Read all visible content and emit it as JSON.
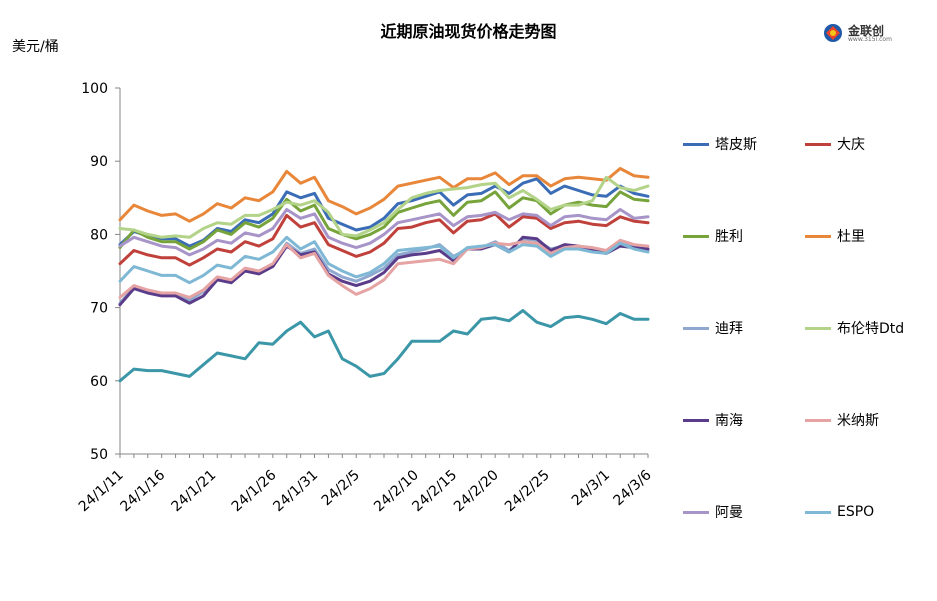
{
  "header": {
    "title": "近期原油现货价格走势图",
    "unit": "美元/桶",
    "logo_text": "金联创",
    "logo_sub": "www.315i.com"
  },
  "chart_data": {
    "type": "line",
    "title": "近期原油现货价格走势图",
    "ylabel": "美元/桶",
    "xlabel": "",
    "ylim": [
      50,
      100
    ],
    "yticks": [
      50,
      60,
      70,
      80,
      90,
      100
    ],
    "grid": false,
    "legend_position": "right",
    "x_tick_labels": [
      "24/1/11",
      "24/1/16",
      "24/1/21",
      "24/1/26",
      "24/1/31",
      "24/2/5",
      "24/2/10",
      "24/2/15",
      "24/2/20",
      "24/2/25",
      "24/3/1",
      "24/3/6"
    ],
    "x": [
      "24/1/11",
      "24/1/12",
      "24/1/15",
      "24/1/16",
      "24/1/17",
      "24/1/18",
      "24/1/19",
      "24/1/22",
      "24/1/23",
      "24/1/24",
      "24/1/25",
      "24/1/26",
      "24/1/29",
      "24/1/30",
      "24/1/31",
      "24/2/1",
      "24/2/2",
      "24/2/5",
      "24/2/6",
      "24/2/7",
      "24/2/8",
      "24/2/9",
      "24/2/13",
      "24/2/14",
      "24/2/15",
      "24/2/16",
      "24/2/19",
      "24/2/20",
      "24/2/21",
      "24/2/22",
      "24/2/23",
      "24/2/26",
      "24/2/27",
      "24/2/28",
      "24/2/29",
      "24/3/1",
      "24/3/4",
      "24/3/5",
      "24/3/6"
    ],
    "series": [
      {
        "name": "塔皮斯",
        "color": "#3a6db5",
        "values": [
          78.6,
          80.4,
          79.8,
          79.4,
          79.4,
          78.4,
          79.2,
          80.8,
          80.4,
          82.0,
          81.6,
          82.8,
          85.8,
          85.0,
          85.6,
          82.2,
          81.4,
          80.6,
          81.0,
          82.2,
          84.2,
          84.6,
          85.2,
          85.8,
          84.0,
          85.4,
          85.6,
          86.6,
          85.6,
          87.0,
          87.6,
          85.6,
          86.6,
          86.0,
          85.4,
          85.2,
          86.6,
          85.6,
          85.2
        ]
      },
      {
        "name": "大庆",
        "color": "#c0413b",
        "values": [
          76.0,
          77.8,
          77.2,
          76.8,
          76.8,
          75.8,
          76.8,
          78.0,
          77.6,
          79.0,
          78.4,
          79.4,
          82.6,
          81.0,
          81.6,
          78.6,
          77.8,
          77.0,
          77.6,
          78.8,
          80.8,
          81.0,
          81.6,
          82.0,
          80.2,
          81.8,
          82.0,
          82.8,
          81.0,
          82.4,
          82.2,
          80.8,
          81.6,
          81.8,
          81.4,
          81.2,
          82.4,
          81.8,
          81.6
        ]
      },
      {
        "name": "胜利",
        "color": "#77a33b",
        "values": [
          78.2,
          80.6,
          79.6,
          79.0,
          79.0,
          78.0,
          79.0,
          80.6,
          80.0,
          81.6,
          81.0,
          82.2,
          84.8,
          83.2,
          84.0,
          80.8,
          80.0,
          79.4,
          80.0,
          81.0,
          83.0,
          83.6,
          84.2,
          84.6,
          82.6,
          84.4,
          84.6,
          85.8,
          83.6,
          85.0,
          84.6,
          82.8,
          84.0,
          84.4,
          84.0,
          83.8,
          85.8,
          84.8,
          84.6
        ]
      },
      {
        "name": "杜里",
        "color": "#e8873a",
        "values": [
          82.0,
          84.0,
          83.2,
          82.6,
          82.8,
          81.8,
          82.8,
          84.2,
          83.6,
          85.0,
          84.6,
          85.8,
          88.6,
          87.0,
          87.8,
          84.6,
          83.8,
          82.8,
          83.6,
          84.8,
          86.6,
          87.0,
          87.4,
          87.8,
          86.4,
          87.6,
          87.6,
          88.4,
          86.8,
          88.0,
          88.0,
          86.6,
          87.6,
          87.8,
          87.6,
          87.4,
          89.0,
          88.0,
          87.8
        ]
      },
      {
        "name": "迪拜",
        "color": "#8fa8d0",
        "values": [
          70.6,
          72.8,
          72.2,
          71.8,
          71.8,
          71.0,
          72.2,
          73.8,
          73.4,
          75.2,
          74.8,
          75.8,
          78.8,
          77.4,
          78.0,
          75.2,
          74.2,
          73.6,
          74.4,
          75.4,
          77.2,
          77.6,
          78.0,
          78.6,
          77.0,
          78.0,
          78.2,
          79.0,
          77.8,
          79.4,
          79.2,
          78.0,
          78.4,
          78.4,
          78.0,
          77.6,
          78.8,
          78.2,
          77.8
        ]
      },
      {
        "name": "布伦特Dtd",
        "color": "#b3d389",
        "values": [
          80.8,
          80.6,
          80.0,
          79.6,
          79.8,
          79.6,
          80.8,
          81.6,
          81.4,
          82.6,
          82.6,
          83.4,
          84.4,
          84.0,
          84.6,
          83.0,
          80.0,
          79.8,
          80.6,
          81.6,
          83.4,
          85.0,
          85.6,
          86.0,
          86.2,
          86.4,
          86.8,
          87.0,
          85.0,
          86.0,
          84.8,
          83.4,
          84.0,
          84.0,
          84.6,
          87.8,
          86.4,
          86.0,
          86.6
        ]
      },
      {
        "name": "南海",
        "color": "#5a3c8a",
        "values": [
          70.4,
          72.6,
          72.0,
          71.6,
          71.6,
          70.6,
          71.6,
          73.8,
          73.4,
          75.0,
          74.6,
          75.6,
          78.4,
          77.2,
          77.6,
          74.6,
          73.6,
          73.0,
          73.6,
          74.8,
          76.8,
          77.2,
          77.4,
          77.8,
          76.4,
          78.0,
          78.0,
          78.6,
          77.6,
          79.6,
          79.4,
          77.8,
          78.6,
          78.4,
          77.8,
          77.4,
          78.4,
          78.2,
          78.0
        ]
      },
      {
        "name": "米纳斯",
        "color": "#e5a3a3",
        "values": [
          71.4,
          73.0,
          72.4,
          72.0,
          72.0,
          71.4,
          72.4,
          74.2,
          73.8,
          75.4,
          75.0,
          76.0,
          78.6,
          76.8,
          77.4,
          74.4,
          73.0,
          71.8,
          72.6,
          73.8,
          76.0,
          76.2,
          76.4,
          76.6,
          76.0,
          78.0,
          78.2,
          78.8,
          78.6,
          79.0,
          78.8,
          77.4,
          78.2,
          78.4,
          78.2,
          77.8,
          79.2,
          78.6,
          78.4
        ]
      },
      {
        "name": "阿曼",
        "color": "#a794c8",
        "values": [
          78.4,
          79.6,
          79.0,
          78.4,
          78.2,
          77.2,
          78.0,
          79.2,
          78.8,
          80.2,
          79.8,
          80.8,
          83.4,
          82.2,
          82.8,
          79.6,
          78.8,
          78.2,
          78.8,
          80.0,
          81.6,
          82.0,
          82.4,
          82.8,
          81.2,
          82.4,
          82.6,
          83.0,
          82.0,
          82.8,
          82.6,
          81.2,
          82.4,
          82.6,
          82.2,
          82.0,
          83.4,
          82.2,
          82.4
        ]
      },
      {
        "name": "ESPO",
        "color": "#7fb8d4",
        "values": [
          73.6,
          75.6,
          75.0,
          74.4,
          74.4,
          73.4,
          74.4,
          75.8,
          75.4,
          77.0,
          76.6,
          77.6,
          79.6,
          78.0,
          79.0,
          76.0,
          75.0,
          74.2,
          74.8,
          76.0,
          77.8,
          78.0,
          78.2,
          78.4,
          76.8,
          78.2,
          78.4,
          78.6,
          77.6,
          78.6,
          78.4,
          77.0,
          78.0,
          78.0,
          77.6,
          77.4,
          78.8,
          78.0,
          77.6
        ]
      },
      {
        "name": "",
        "color": "#3b97a8",
        "values": [
          60.0,
          61.6,
          61.4,
          61.4,
          61.0,
          60.6,
          62.2,
          63.8,
          63.4,
          63.0,
          65.2,
          65.0,
          66.8,
          68.0,
          66.0,
          66.8,
          63.0,
          62.0,
          60.6,
          61.0,
          63.0,
          65.4,
          65.4,
          65.4,
          66.8,
          66.4,
          68.4,
          68.6,
          68.2,
          69.6,
          68.0,
          67.4,
          68.6,
          68.8,
          68.4,
          67.8,
          69.2,
          68.4,
          68.4
        ]
      }
    ]
  },
  "legend": [
    {
      "label": "塔皮斯",
      "color": "#3a6db5"
    },
    {
      "label": "大庆",
      "color": "#c0413b"
    },
    {
      "label": "胜利",
      "color": "#77a33b"
    },
    {
      "label": "杜里",
      "color": "#e8873a"
    },
    {
      "label": "迪拜",
      "color": "#8fa8d0"
    },
    {
      "label": "布伦特Dtd",
      "color": "#b3d389"
    },
    {
      "label": "南海",
      "color": "#5a3c8a"
    },
    {
      "label": "米纳斯",
      "color": "#e5a3a3"
    },
    {
      "label": "阿曼",
      "color": "#a794c8"
    },
    {
      "label": "ESPO",
      "color": "#7fb8d4"
    }
  ]
}
